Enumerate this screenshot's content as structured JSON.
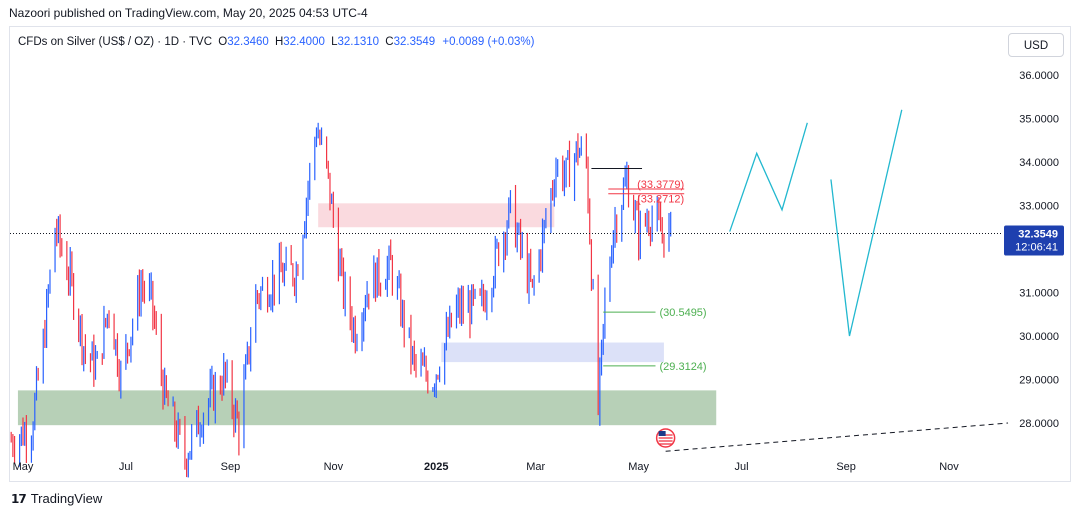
{
  "header": {
    "published": "Nazoori published on TradingView.com, May 20, 2025 04:53 UTC-4"
  },
  "symbol": {
    "name": "CFDs on Silver (US$ / OZ) · 1D · TVC",
    "ohlc": [
      {
        "k": "O",
        "v": "32.3460"
      },
      {
        "k": "H",
        "v": "32.4000"
      },
      {
        "k": "L",
        "v": "32.1310"
      },
      {
        "k": "C",
        "v": "32.3549"
      }
    ],
    "change": "+0.0089 (+0.03%)"
  },
  "currency_button": "USD",
  "footer": {
    "logo_text": "TradingView"
  },
  "colors": {
    "up": "#2962ff",
    "down": "#f23645",
    "supply_zone": "#f9d3d9",
    "demand_zone": "#d6dcf7",
    "base_zone": "#a5c4a5",
    "projection": "#22b8cf",
    "green_label": "#4caf50",
    "red_label": "#f23645"
  },
  "chart_data": {
    "type": "candlestick",
    "y_axis": {
      "ticks": [
        "36.0000",
        "35.0000",
        "34.0000",
        "33.0000",
        "32.0000",
        "31.0000",
        "30.0000",
        "29.0000",
        "28.0000"
      ],
      "tick_values": [
        36,
        35,
        34,
        33,
        32,
        31,
        30,
        29,
        28
      ],
      "range": [
        27.35,
        36.25
      ],
      "scale": "linear"
    },
    "x_axis": {
      "ticks": [
        "May",
        "Jul",
        "Sep",
        "Nov",
        "2025",
        "Mar",
        "May",
        "Jul",
        "Sep",
        "Nov"
      ],
      "tick_dates": [
        "2024-05-01",
        "2024-07-01",
        "2024-09-01",
        "2024-11-01",
        "2025-01-01",
        "2025-03-01",
        "2025-05-01",
        "2025-07-01",
        "2025-09-01",
        "2025-11-01"
      ],
      "range": [
        "2024-04-24",
        "2025-12-06"
      ]
    },
    "current_price": {
      "value": 32.3549,
      "label": "32.3549",
      "countdown": "12:06:41"
    },
    "price_path": [
      [
        "2024-04-24",
        27.6
      ],
      [
        "2024-05-06",
        27.9
      ],
      [
        "2024-05-13",
        29.8
      ],
      [
        "2024-05-20",
        32.5
      ],
      [
        "2024-05-29",
        31.3
      ],
      [
        "2024-06-07",
        29.6
      ],
      [
        "2024-06-14",
        29.3
      ],
      [
        "2024-06-21",
        30.7
      ],
      [
        "2024-06-28",
        29.1
      ],
      [
        "2024-07-10",
        31.2
      ],
      [
        "2024-07-16",
        30.8
      ],
      [
        "2024-07-24",
        28.6
      ],
      [
        "2024-08-05",
        27.2
      ],
      [
        "2024-08-16",
        28.3
      ],
      [
        "2024-08-28",
        29.1
      ],
      [
        "2024-09-06",
        27.9
      ],
      [
        "2024-09-16",
        30.9
      ],
      [
        "2024-09-30",
        31.4
      ],
      [
        "2024-10-10",
        31.5
      ],
      [
        "2024-10-22",
        34.8
      ],
      [
        "2024-10-28",
        33.8
      ],
      [
        "2024-11-07",
        31.0
      ],
      [
        "2024-11-14",
        30.1
      ],
      [
        "2024-11-22",
        31.2
      ],
      [
        "2024-12-05",
        31.6
      ],
      [
        "2024-12-19",
        29.3
      ],
      [
        "2024-12-30",
        29.0
      ],
      [
        "2025-01-13",
        30.6
      ],
      [
        "2025-01-28",
        30.7
      ],
      [
        "2025-02-10",
        32.4
      ],
      [
        "2025-02-14",
        32.9
      ],
      [
        "2025-02-27",
        31.0
      ],
      [
        "2025-03-13",
        33.9
      ],
      [
        "2025-03-19",
        33.7
      ],
      [
        "2025-03-26",
        34.3
      ],
      [
        "2025-03-31",
        34.0
      ],
      [
        "2025-04-07",
        28.3
      ],
      [
        "2025-04-11",
        30.7
      ],
      [
        "2025-04-16",
        32.5
      ],
      [
        "2025-04-24",
        33.6
      ],
      [
        "2025-05-01",
        32.4
      ],
      [
        "2025-05-08",
        32.8
      ],
      [
        "2025-05-14",
        32.4
      ],
      [
        "2025-05-20",
        32.3549
      ]
    ],
    "zones": [
      {
        "name": "supply",
        "from": "2024-10-23",
        "to": "2025-03-12",
        "low": 32.5,
        "high": 33.05
      },
      {
        "name": "demand",
        "from": "2025-01-04",
        "to": "2025-05-16",
        "low": 29.4,
        "high": 29.85
      },
      {
        "name": "base",
        "from": "2024-04-28",
        "to": "2025-06-16",
        "low": 27.95,
        "high": 28.75
      }
    ],
    "levels": [
      {
        "label": "(33.3779)",
        "value": 33.3779,
        "from": "2025-04-13",
        "to": "2025-05-28",
        "color": "red"
      },
      {
        "label": "(33.2712)",
        "value": 33.2712,
        "from": "2025-04-13",
        "to": "2025-05-28",
        "color": "red"
      },
      {
        "label": "(30.5495)",
        "value": 30.5495,
        "from": "2025-04-10",
        "to": "2025-05-11",
        "color": "green"
      },
      {
        "label": "(29.3124)",
        "value": 29.3124,
        "from": "2025-04-10",
        "to": "2025-05-11",
        "color": "green"
      },
      {
        "label": "",
        "value": 33.85,
        "from": "2025-04-03",
        "to": "2025-05-03",
        "color": "black"
      }
    ],
    "projection_paths": [
      [
        [
          "2025-06-24",
          32.4
        ],
        [
          "2025-07-10",
          34.2
        ],
        [
          "2025-07-25",
          32.9
        ],
        [
          "2025-08-09",
          34.9
        ]
      ],
      [
        [
          "2025-08-23",
          33.6
        ],
        [
          "2025-09-03",
          30.0
        ],
        [
          "2025-10-04",
          35.2
        ]
      ]
    ],
    "trendline": [
      [
        "2025-05-17",
        27.35
      ],
      [
        "2025-12-06",
        28.0
      ]
    ]
  }
}
